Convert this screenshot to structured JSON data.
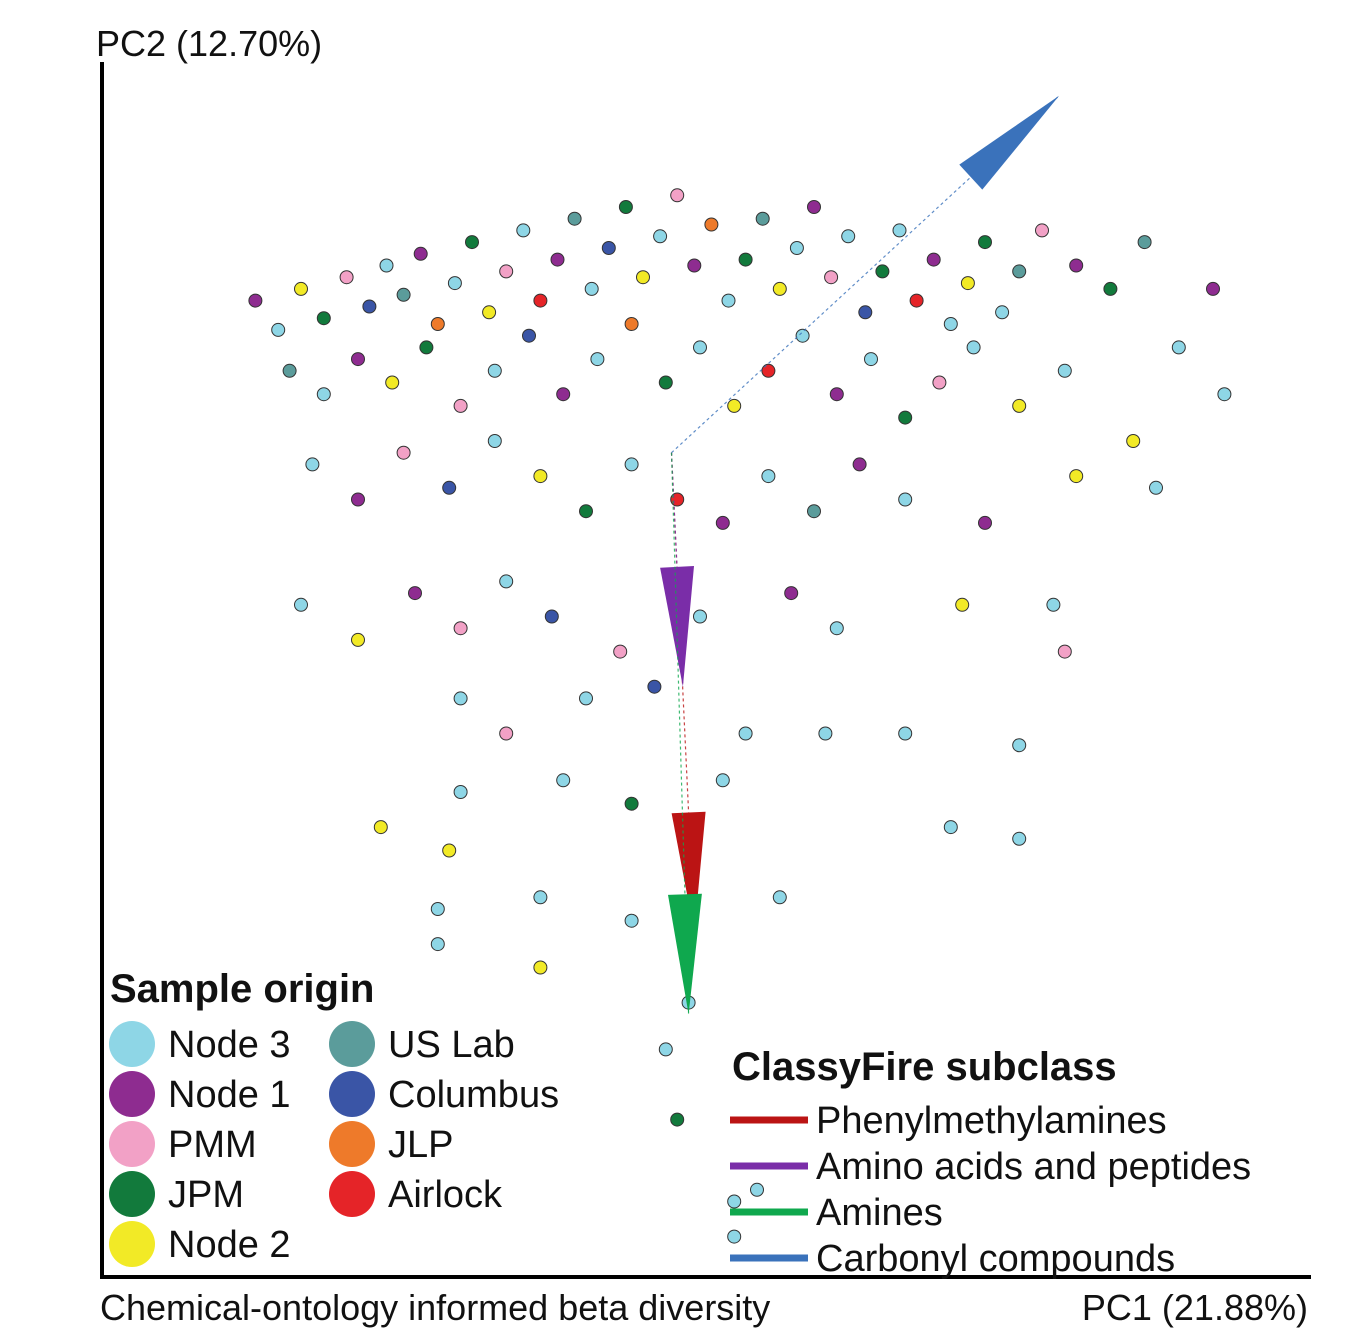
{
  "chart_data": {
    "type": "scatter",
    "title": "",
    "xlabel": "PC1 (21.88%)",
    "ylabel": "PC2 (12.70%)",
    "caption": "Chemical-ontology informed beta diversity",
    "xlim": [
      -1.0,
      1.0
    ],
    "ylim": [
      -1.0,
      1.0
    ],
    "grid": false,
    "legend_title": "Sample origin",
    "legend_placement": "bottom-left",
    "groups": [
      {
        "name": "Node 3",
        "color": "#8ed6e6"
      },
      {
        "name": "Node 1",
        "color": "#8e2c90"
      },
      {
        "name": "PMM",
        "color": "#f2a1c6"
      },
      {
        "name": "JPM",
        "color": "#127a3c"
      },
      {
        "name": "Node 2",
        "color": "#f2ea26"
      },
      {
        "name": "US Lab",
        "color": "#5b9c9b"
      },
      {
        "name": "Columbus",
        "color": "#3a55a6"
      },
      {
        "name": "JLP",
        "color": "#ee7a2a"
      },
      {
        "name": "Airlock",
        "color": "#e52428"
      }
    ],
    "biplot_title": "ClassyFire subclass",
    "biplot_placement": "bottom-right",
    "biplot_origin": [
      -0.05,
      0.38
    ],
    "biplot_arrows": [
      {
        "name": "Phenylmethylamines",
        "color": "#bb1414",
        "x": 0.04,
        "y": -0.82
      },
      {
        "name": "Amino acids and peptides",
        "color": "#7a2da8",
        "x": 0.02,
        "y": -0.4
      },
      {
        "name": "Amines",
        "color": "#0fa84e",
        "x": 0.03,
        "y": -0.96
      },
      {
        "name": "Carbonyl compounds",
        "color": "#3a72bb",
        "x": 0.68,
        "y": 0.61
      }
    ],
    "points": [
      {
        "x": -0.78,
        "y": 0.64,
        "g": 1
      },
      {
        "x": -0.74,
        "y": 0.59,
        "g": 0
      },
      {
        "x": -0.7,
        "y": 0.66,
        "g": 4
      },
      {
        "x": -0.66,
        "y": 0.61,
        "g": 3
      },
      {
        "x": -0.62,
        "y": 0.68,
        "g": 2
      },
      {
        "x": -0.58,
        "y": 0.63,
        "g": 6
      },
      {
        "x": -0.55,
        "y": 0.7,
        "g": 0
      },
      {
        "x": -0.52,
        "y": 0.65,
        "g": 5
      },
      {
        "x": -0.49,
        "y": 0.72,
        "g": 1
      },
      {
        "x": -0.46,
        "y": 0.6,
        "g": 7
      },
      {
        "x": -0.43,
        "y": 0.67,
        "g": 0
      },
      {
        "x": -0.4,
        "y": 0.74,
        "g": 3
      },
      {
        "x": -0.37,
        "y": 0.62,
        "g": 4
      },
      {
        "x": -0.34,
        "y": 0.69,
        "g": 2
      },
      {
        "x": -0.31,
        "y": 0.76,
        "g": 0
      },
      {
        "x": -0.28,
        "y": 0.64,
        "g": 8
      },
      {
        "x": -0.25,
        "y": 0.71,
        "g": 1
      },
      {
        "x": -0.22,
        "y": 0.78,
        "g": 5
      },
      {
        "x": -0.19,
        "y": 0.66,
        "g": 0
      },
      {
        "x": -0.16,
        "y": 0.73,
        "g": 6
      },
      {
        "x": -0.13,
        "y": 0.8,
        "g": 3
      },
      {
        "x": -0.1,
        "y": 0.68,
        "g": 4
      },
      {
        "x": -0.07,
        "y": 0.75,
        "g": 0
      },
      {
        "x": -0.04,
        "y": 0.82,
        "g": 2
      },
      {
        "x": -0.01,
        "y": 0.7,
        "g": 1
      },
      {
        "x": 0.02,
        "y": 0.77,
        "g": 7
      },
      {
        "x": 0.05,
        "y": 0.64,
        "g": 0
      },
      {
        "x": 0.08,
        "y": 0.71,
        "g": 3
      },
      {
        "x": 0.11,
        "y": 0.78,
        "g": 5
      },
      {
        "x": 0.14,
        "y": 0.66,
        "g": 4
      },
      {
        "x": 0.17,
        "y": 0.73,
        "g": 0
      },
      {
        "x": 0.2,
        "y": 0.8,
        "g": 1
      },
      {
        "x": 0.23,
        "y": 0.68,
        "g": 2
      },
      {
        "x": 0.26,
        "y": 0.75,
        "g": 0
      },
      {
        "x": 0.29,
        "y": 0.62,
        "g": 6
      },
      {
        "x": 0.32,
        "y": 0.69,
        "g": 3
      },
      {
        "x": 0.35,
        "y": 0.76,
        "g": 0
      },
      {
        "x": 0.38,
        "y": 0.64,
        "g": 8
      },
      {
        "x": 0.41,
        "y": 0.71,
        "g": 1
      },
      {
        "x": 0.44,
        "y": 0.6,
        "g": 0
      },
      {
        "x": 0.47,
        "y": 0.67,
        "g": 4
      },
      {
        "x": 0.5,
        "y": 0.74,
        "g": 3
      },
      {
        "x": 0.53,
        "y": 0.62,
        "g": 0
      },
      {
        "x": 0.56,
        "y": 0.69,
        "g": 5
      },
      {
        "x": 0.6,
        "y": 0.76,
        "g": 2
      },
      {
        "x": 0.66,
        "y": 0.7,
        "g": 1
      },
      {
        "x": 0.72,
        "y": 0.66,
        "g": 3
      },
      {
        "x": 0.78,
        "y": 0.74,
        "g": 5
      },
      {
        "x": 0.84,
        "y": 0.56,
        "g": 0
      },
      {
        "x": 0.9,
        "y": 0.66,
        "g": 1
      },
      {
        "x": -0.72,
        "y": 0.52,
        "g": 5
      },
      {
        "x": -0.66,
        "y": 0.48,
        "g": 0
      },
      {
        "x": -0.6,
        "y": 0.54,
        "g": 1
      },
      {
        "x": -0.54,
        "y": 0.5,
        "g": 4
      },
      {
        "x": -0.48,
        "y": 0.56,
        "g": 3
      },
      {
        "x": -0.42,
        "y": 0.46,
        "g": 2
      },
      {
        "x": -0.36,
        "y": 0.52,
        "g": 0
      },
      {
        "x": -0.3,
        "y": 0.58,
        "g": 6
      },
      {
        "x": -0.24,
        "y": 0.48,
        "g": 1
      },
      {
        "x": -0.18,
        "y": 0.54,
        "g": 0
      },
      {
        "x": -0.12,
        "y": 0.6,
        "g": 7
      },
      {
        "x": -0.06,
        "y": 0.5,
        "g": 3
      },
      {
        "x": 0.0,
        "y": 0.56,
        "g": 0
      },
      {
        "x": 0.06,
        "y": 0.46,
        "g": 4
      },
      {
        "x": 0.12,
        "y": 0.52,
        "g": 8
      },
      {
        "x": 0.18,
        "y": 0.58,
        "g": 0
      },
      {
        "x": 0.24,
        "y": 0.48,
        "g": 1
      },
      {
        "x": 0.3,
        "y": 0.54,
        "g": 0
      },
      {
        "x": 0.36,
        "y": 0.44,
        "g": 3
      },
      {
        "x": 0.42,
        "y": 0.5,
        "g": 2
      },
      {
        "x": 0.48,
        "y": 0.56,
        "g": 0
      },
      {
        "x": 0.56,
        "y": 0.46,
        "g": 4
      },
      {
        "x": 0.64,
        "y": 0.52,
        "g": 0
      },
      {
        "x": 0.76,
        "y": 0.4,
        "g": 4
      },
      {
        "x": 0.92,
        "y": 0.48,
        "g": 0
      },
      {
        "x": -0.68,
        "y": 0.36,
        "g": 0
      },
      {
        "x": -0.6,
        "y": 0.3,
        "g": 1
      },
      {
        "x": -0.52,
        "y": 0.38,
        "g": 2
      },
      {
        "x": -0.44,
        "y": 0.32,
        "g": 6
      },
      {
        "x": -0.36,
        "y": 0.4,
        "g": 0
      },
      {
        "x": -0.28,
        "y": 0.34,
        "g": 4
      },
      {
        "x": -0.2,
        "y": 0.28,
        "g": 3
      },
      {
        "x": -0.12,
        "y": 0.36,
        "g": 0
      },
      {
        "x": -0.04,
        "y": 0.3,
        "g": 8
      },
      {
        "x": 0.04,
        "y": 0.26,
        "g": 1
      },
      {
        "x": 0.12,
        "y": 0.34,
        "g": 0
      },
      {
        "x": 0.2,
        "y": 0.28,
        "g": 5
      },
      {
        "x": 0.28,
        "y": 0.36,
        "g": 1
      },
      {
        "x": 0.36,
        "y": 0.3,
        "g": 0
      },
      {
        "x": 0.5,
        "y": 0.26,
        "g": 1
      },
      {
        "x": 0.66,
        "y": 0.34,
        "g": 4
      },
      {
        "x": 0.8,
        "y": 0.32,
        "g": 0
      },
      {
        "x": -0.7,
        "y": 0.12,
        "g": 0
      },
      {
        "x": -0.6,
        "y": 0.06,
        "g": 4
      },
      {
        "x": -0.5,
        "y": 0.14,
        "g": 1
      },
      {
        "x": -0.42,
        "y": 0.08,
        "g": 2
      },
      {
        "x": -0.34,
        "y": 0.16,
        "g": 0
      },
      {
        "x": -0.26,
        "y": 0.1,
        "g": 6
      },
      {
        "x": -0.14,
        "y": 0.04,
        "g": 2
      },
      {
        "x": 0.0,
        "y": 0.1,
        "g": 0
      },
      {
        "x": 0.16,
        "y": 0.14,
        "g": 1
      },
      {
        "x": 0.24,
        "y": 0.08,
        "g": 0
      },
      {
        "x": 0.46,
        "y": 0.12,
        "g": 4
      },
      {
        "x": 0.62,
        "y": 0.12,
        "g": 0
      },
      {
        "x": 0.64,
        "y": 0.04,
        "g": 2
      },
      {
        "x": -0.42,
        "y": -0.04,
        "g": 0
      },
      {
        "x": -0.34,
        "y": -0.1,
        "g": 2
      },
      {
        "x": -0.2,
        "y": -0.04,
        "g": 0
      },
      {
        "x": -0.08,
        "y": -0.02,
        "g": 6
      },
      {
        "x": 0.08,
        "y": -0.1,
        "g": 0
      },
      {
        "x": 0.22,
        "y": -0.1,
        "g": 0
      },
      {
        "x": 0.36,
        "y": -0.1,
        "g": 0
      },
      {
        "x": 0.56,
        "y": -0.12,
        "g": 0
      },
      {
        "x": -0.42,
        "y": -0.2,
        "g": 0
      },
      {
        "x": -0.24,
        "y": -0.18,
        "g": 0
      },
      {
        "x": -0.12,
        "y": -0.22,
        "g": 3
      },
      {
        "x": 0.04,
        "y": -0.18,
        "g": 0
      },
      {
        "x": 0.44,
        "y": -0.26,
        "g": 0
      },
      {
        "x": 0.56,
        "y": -0.28,
        "g": 0
      },
      {
        "x": -0.56,
        "y": -0.26,
        "g": 4
      },
      {
        "x": -0.44,
        "y": -0.3,
        "g": 4
      },
      {
        "x": -0.46,
        "y": -0.4,
        "g": 0
      },
      {
        "x": -0.28,
        "y": -0.38,
        "g": 0
      },
      {
        "x": -0.12,
        "y": -0.42,
        "g": 0
      },
      {
        "x": 0.14,
        "y": -0.38,
        "g": 0
      },
      {
        "x": -0.46,
        "y": -0.46,
        "g": 0
      },
      {
        "x": -0.28,
        "y": -0.5,
        "g": 4
      },
      {
        "x": -0.02,
        "y": -0.56,
        "g": 0
      },
      {
        "x": -0.06,
        "y": -0.64,
        "g": 0
      },
      {
        "x": -0.04,
        "y": -0.76,
        "g": 3
      },
      {
        "x": 0.06,
        "y": -0.9,
        "g": 0
      },
      {
        "x": 0.1,
        "y": -0.88,
        "g": 0
      },
      {
        "x": 0.06,
        "y": -0.96,
        "g": 0
      }
    ]
  }
}
